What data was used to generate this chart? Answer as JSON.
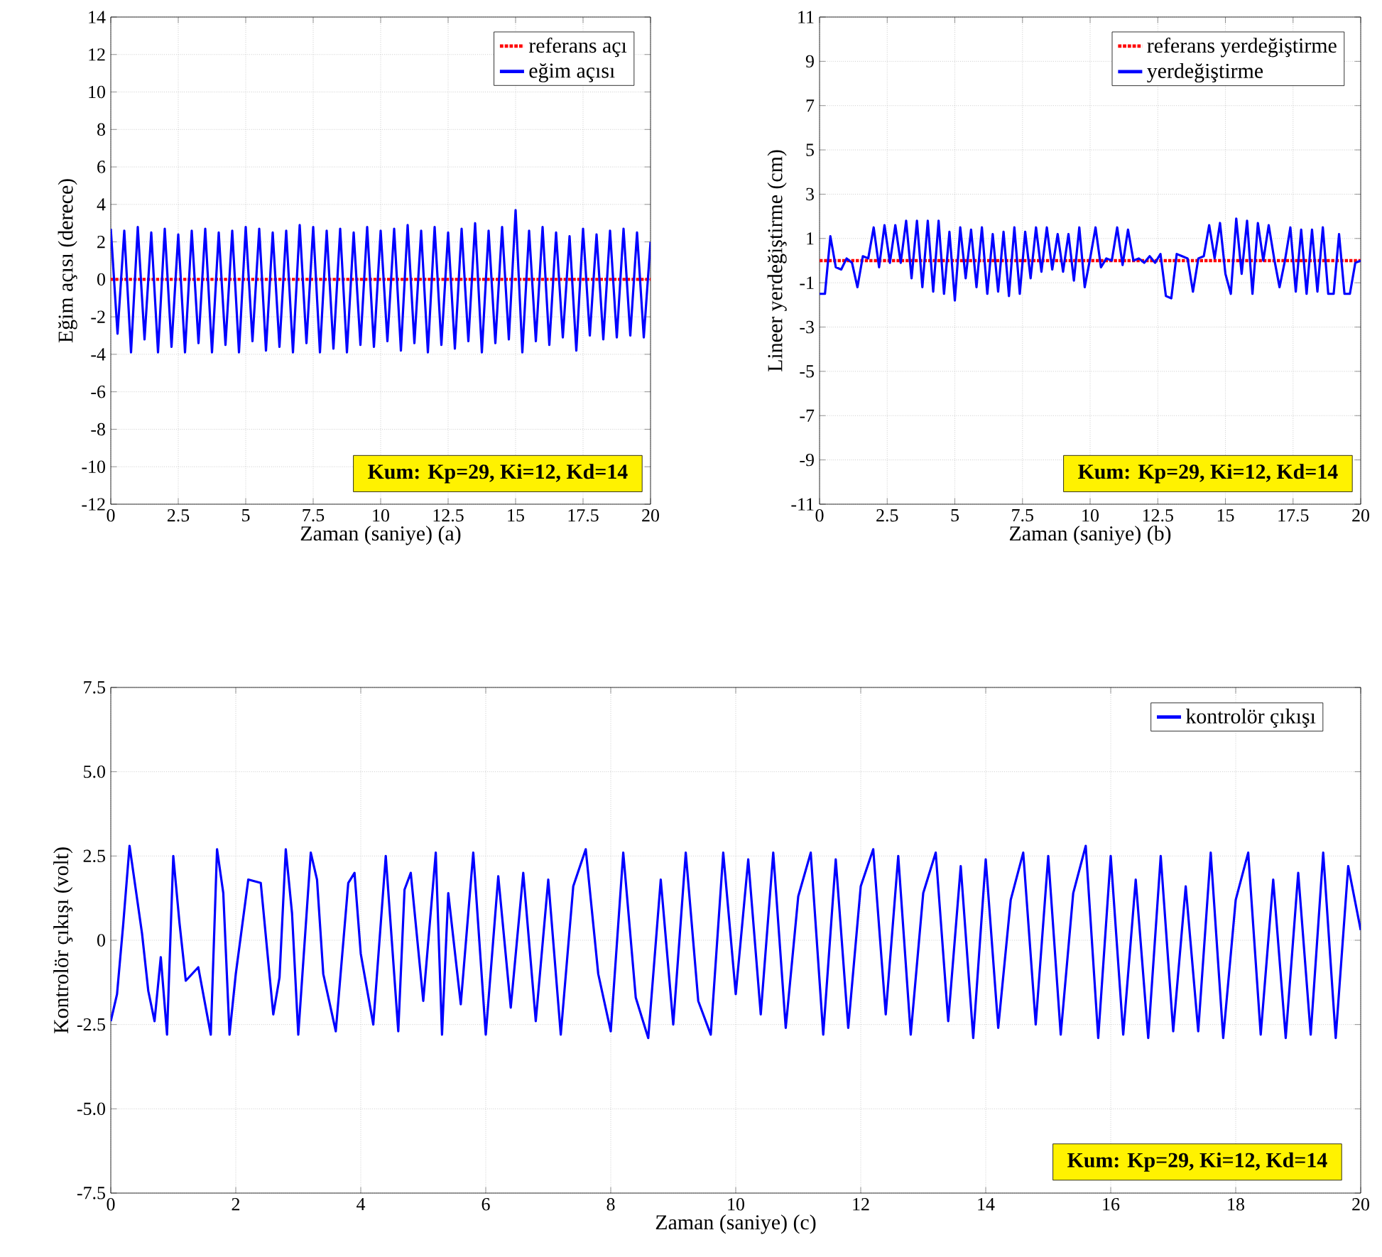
{
  "chart_data": [
    {
      "type": "line",
      "xlabel": "Zaman (saniye) (a)",
      "ylabel": "Eğim açısı (derece)",
      "xlim": [
        0,
        20
      ],
      "ylim": [
        -12,
        14
      ],
      "xticks": [
        0,
        2.5,
        5,
        7.5,
        10,
        12.5,
        15,
        17.5,
        20
      ],
      "yticks": [
        -12,
        -10,
        -8,
        -6,
        -4,
        -2,
        0,
        2,
        4,
        6,
        8,
        10,
        12,
        14
      ],
      "grid": true,
      "legend": "top right",
      "annotations": [
        "Kum: Kp=29, Ki=12, Kd=14"
      ],
      "series": [
        {
          "name": "referans açı",
          "color": "#ff0000",
          "line_style": "dotted",
          "x": [
            0,
            20
          ],
          "values": [
            0,
            0
          ]
        },
        {
          "name": "eğim açısı",
          "color": "#0000ff",
          "line_style": "solid",
          "x": [
            0,
            0.25,
            0.5,
            0.75,
            1,
            1.25,
            1.5,
            1.75,
            2,
            2.25,
            2.5,
            2.75,
            3,
            3.25,
            3.5,
            3.75,
            4,
            4.25,
            4.5,
            4.75,
            5,
            5.25,
            5.5,
            5.75,
            6,
            6.25,
            6.5,
            6.75,
            7,
            7.25,
            7.5,
            7.75,
            8,
            8.25,
            8.5,
            8.75,
            9,
            9.25,
            9.5,
            9.75,
            10,
            10.25,
            10.5,
            10.75,
            11,
            11.25,
            11.5,
            11.75,
            12,
            12.25,
            12.5,
            12.75,
            13,
            13.25,
            13.5,
            13.75,
            14,
            14.25,
            14.5,
            14.75,
            15,
            15.25,
            15.5,
            15.75,
            16,
            16.25,
            16.5,
            16.75,
            17,
            17.25,
            17.5,
            17.75,
            18,
            18.25,
            18.5,
            18.75,
            19,
            19.25,
            19.5,
            19.75,
            20
          ],
          "values": [
            2.7,
            -2.9,
            2.6,
            -3.9,
            2.8,
            -3.2,
            2.5,
            -3.9,
            2.7,
            -3.6,
            2.4,
            -3.9,
            2.6,
            -3.4,
            2.7,
            -3.9,
            2.5,
            -3.5,
            2.6,
            -3.9,
            2.8,
            -3.3,
            2.7,
            -3.8,
            2.5,
            -3.6,
            2.6,
            -3.9,
            2.9,
            -3.4,
            2.8,
            -3.9,
            2.6,
            -3.7,
            2.7,
            -3.9,
            2.5,
            -3.5,
            2.8,
            -3.6,
            2.6,
            -3.3,
            2.7,
            -3.8,
            2.9,
            -3.4,
            2.6,
            -3.9,
            2.8,
            -3.5,
            2.5,
            -3.7,
            2.7,
            -3.3,
            3.0,
            -3.9,
            2.6,
            -3.4,
            2.8,
            -3.2,
            3.7,
            -3.9,
            2.6,
            -3.3,
            2.8,
            -3.5,
            2.5,
            -3.1,
            2.3,
            -3.8,
            2.7,
            -3.0,
            2.4,
            -3.2,
            2.6,
            -3.1,
            2.7,
            -3.0,
            2.5,
            -3.1,
            2.0
          ]
        }
      ]
    },
    {
      "type": "line",
      "xlabel": "Zaman (saniye) (b)",
      "ylabel": "Lineer yerdeğiştirme (cm)",
      "xlim": [
        0,
        20
      ],
      "ylim": [
        -11,
        11
      ],
      "xticks": [
        0,
        2.5,
        5,
        7.5,
        10,
        12.5,
        15,
        17.5,
        20
      ],
      "yticks": [
        -11,
        -9,
        -7,
        -5,
        -3,
        -1,
        1,
        3,
        5,
        7,
        9,
        11
      ],
      "grid": true,
      "legend": "top right",
      "annotations": [
        "Kum: Kp=29, Ki=12, Kd=14"
      ],
      "series": [
        {
          "name": "referans yerdeğiştirme",
          "color": "#ff0000",
          "line_style": "dotted",
          "x": [
            0,
            20
          ],
          "values": [
            0,
            0
          ]
        },
        {
          "name": "yerdeğiştirme",
          "color": "#0000ff",
          "line_style": "solid",
          "x": [
            0,
            0.2,
            0.4,
            0.6,
            0.8,
            1,
            1.2,
            1.4,
            1.6,
            1.8,
            2,
            2.2,
            2.4,
            2.6,
            2.8,
            3,
            3.2,
            3.4,
            3.6,
            3.8,
            4,
            4.2,
            4.4,
            4.6,
            4.8,
            5,
            5.2,
            5.4,
            5.6,
            5.8,
            6,
            6.2,
            6.4,
            6.6,
            6.8,
            7,
            7.2,
            7.4,
            7.6,
            7.8,
            8,
            8.2,
            8.4,
            8.6,
            8.8,
            9,
            9.2,
            9.4,
            9.6,
            9.8,
            10,
            10.2,
            10.4,
            10.6,
            10.8,
            11,
            11.2,
            11.4,
            11.6,
            11.8,
            12,
            12.2,
            12.4,
            12.6,
            12.8,
            13,
            13.2,
            13.4,
            13.6,
            13.8,
            14,
            14.2,
            14.4,
            14.6,
            14.8,
            15,
            15.2,
            15.4,
            15.6,
            15.8,
            16,
            16.2,
            16.4,
            16.6,
            16.8,
            17,
            17.2,
            17.4,
            17.6,
            17.8,
            18,
            18.2,
            18.4,
            18.6,
            18.8,
            19,
            19.2,
            19.4,
            19.6,
            19.8,
            20
          ],
          "values": [
            -1.5,
            -1.5,
            1.1,
            -0.3,
            -0.4,
            0.1,
            -0.1,
            -1.2,
            0.2,
            0.1,
            1.5,
            -0.3,
            1.6,
            -0.1,
            1.6,
            -0.1,
            1.8,
            -0.8,
            1.8,
            -1.2,
            1.8,
            -1.4,
            1.8,
            -1.5,
            1.3,
            -1.8,
            1.5,
            -0.8,
            1.4,
            -1.2,
            1.5,
            -1.5,
            1.2,
            -1.4,
            1.3,
            -1.6,
            1.5,
            -1.5,
            1.3,
            -0.8,
            1.5,
            -0.5,
            1.5,
            -0.4,
            1.2,
            -0.5,
            1.2,
            -0.9,
            1.5,
            -1.2,
            0.1,
            1.5,
            -0.3,
            0.1,
            0,
            1.5,
            -0.2,
            1.4,
            0,
            0.1,
            -0.1,
            0.2,
            -0.1,
            0.3,
            -1.6,
            -1.7,
            0.3,
            0.2,
            0.1,
            -1.4,
            0.1,
            0.2,
            1.6,
            0.1,
            1.7,
            -0.6,
            -1.5,
            1.9,
            -0.6,
            1.8,
            -1.5,
            1.7,
            0,
            1.6,
            0.1,
            -1.2,
            0,
            1.5,
            -1.4,
            1.4,
            -1.5,
            1.4,
            -1.4,
            1.5,
            -1.5,
            -1.5,
            1.2,
            -1.5,
            -1.5,
            -0.1,
            0
          ]
        }
      ]
    },
    {
      "type": "line",
      "xlabel": "Zaman (saniye) (c)",
      "ylabel": "Kontrolör çıkışı (volt)",
      "xlim": [
        0,
        20
      ],
      "ylim": [
        -7.5,
        7.5
      ],
      "xticks": [
        0,
        2,
        4,
        6,
        8,
        10,
        12,
        14,
        16,
        18,
        20
      ],
      "yticks": [
        -7.5,
        {
          "value": -5,
          "label": "-5.0"
        },
        -2.5,
        0,
        2.5,
        {
          "value": 5,
          "label": "5.0"
        },
        7.5
      ],
      "grid": true,
      "legend": "top right",
      "annotations": [
        "Kum: Kp=29, Ki=12, Kd=14"
      ],
      "series": [
        {
          "name": "kontrolör çıkışı",
          "color": "#0000ff",
          "line_style": "solid",
          "x": [
            0,
            0.1,
            0.2,
            0.3,
            0.4,
            0.5,
            0.6,
            0.7,
            0.8,
            0.9,
            1,
            1.1,
            1.2,
            1.4,
            1.6,
            1.7,
            1.8,
            1.9,
            2.0,
            2.2,
            2.4,
            2.6,
            2.7,
            2.8,
            2.9,
            3.0,
            3.2,
            3.3,
            3.4,
            3.6,
            3.8,
            3.9,
            4.0,
            4.2,
            4.4,
            4.6,
            4.7,
            4.8,
            5.0,
            5.2,
            5.3,
            5.4,
            5.6,
            5.8,
            6.0,
            6.2,
            6.4,
            6.6,
            6.8,
            7.0,
            7.2,
            7.4,
            7.6,
            7.8,
            8.0,
            8.2,
            8.4,
            8.6,
            8.8,
            9.0,
            9.2,
            9.4,
            9.6,
            9.8,
            10.0,
            10.2,
            10.4,
            10.6,
            10.8,
            11.0,
            11.2,
            11.4,
            11.6,
            11.8,
            12.0,
            12.2,
            12.4,
            12.6,
            12.8,
            13.0,
            13.2,
            13.4,
            13.6,
            13.8,
            14.0,
            14.2,
            14.4,
            14.6,
            14.8,
            15.0,
            15.2,
            15.4,
            15.6,
            15.8,
            16.0,
            16.2,
            16.4,
            16.6,
            16.8,
            17.0,
            17.2,
            17.4,
            17.6,
            17.8,
            18.0,
            18.2,
            18.4,
            18.6,
            18.8,
            19.0,
            19.2,
            19.4,
            19.6,
            19.8,
            20
          ],
          "values": [
            -2.4,
            -1.6,
            0.5,
            2.8,
            1.5,
            0.2,
            -1.5,
            -2.4,
            -0.5,
            -2.8,
            2.5,
            0.5,
            -1.2,
            -0.8,
            -2.8,
            2.7,
            1.4,
            -2.8,
            -1.0,
            1.8,
            1.7,
            -2.2,
            -1.1,
            2.7,
            0.8,
            -2.8,
            2.6,
            1.8,
            -1.0,
            -2.7,
            1.7,
            2.0,
            -0.4,
            -2.5,
            2.5,
            -2.7,
            1.5,
            2.0,
            -1.8,
            2.6,
            -2.8,
            1.4,
            -1.9,
            2.6,
            -2.8,
            1.9,
            -2.0,
            2.0,
            -2.4,
            1.8,
            -2.8,
            1.6,
            2.7,
            -1.0,
            -2.7,
            2.6,
            -1.7,
            -2.9,
            1.8,
            -2.5,
            2.6,
            -1.8,
            -2.8,
            2.6,
            -1.6,
            2.4,
            -2.2,
            2.6,
            -2.6,
            1.3,
            2.6,
            -2.8,
            2.4,
            -2.6,
            1.6,
            2.7,
            -2.2,
            2.5,
            -2.8,
            1.4,
            2.6,
            -2.4,
            2.2,
            -2.9,
            2.4,
            -2.6,
            1.2,
            2.6,
            -2.5,
            2.5,
            -2.8,
            1.4,
            2.8,
            -2.9,
            2.5,
            -2.8,
            1.8,
            -2.9,
            2.5,
            -2.7,
            1.6,
            -2.7,
            2.6,
            -2.9,
            1.2,
            2.6,
            -2.8,
            1.8,
            -2.9,
            2.0,
            -2.8,
            2.6,
            -2.9,
            2.2,
            0.3
          ]
        }
      ]
    }
  ]
}
